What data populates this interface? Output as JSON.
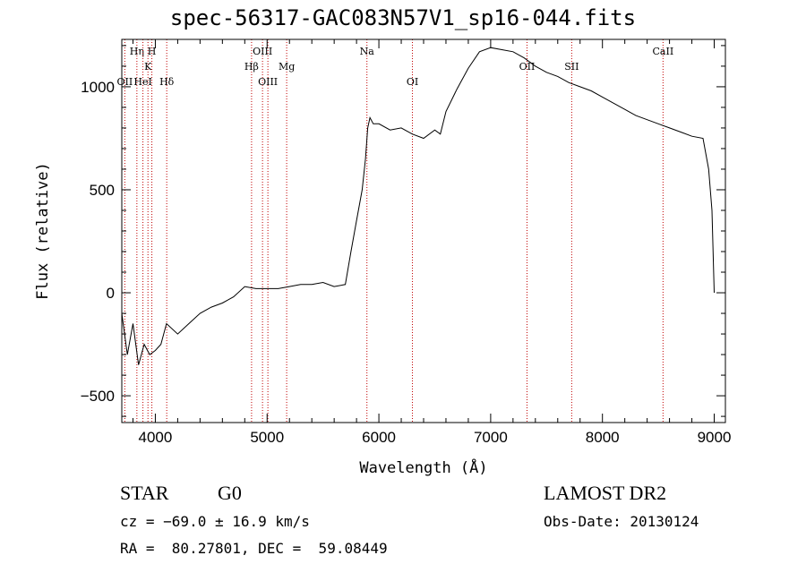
{
  "header": {
    "title": "spec-56317-GAC083N57V1_sp16-044.fits"
  },
  "info": {
    "object_class": "STAR",
    "subclass": "G0",
    "survey": "LAMOST DR2",
    "cz": "cz = −69.0 ± 16.9 km/s",
    "obs_date": "Obs-Date: 20130124",
    "ra_dec": "RA =  80.27801, DEC =  59.08449"
  },
  "chart_data": {
    "type": "line",
    "title": "spec-56317-GAC083N57V1_sp16-044.fits",
    "xlabel": "Wavelength (Å)",
    "ylabel": "Flux (relative)",
    "xlim": [
      3700,
      9100
    ],
    "ylim": [
      -630,
      1230
    ],
    "xticks": [
      4000,
      5000,
      6000,
      7000,
      8000,
      9000
    ],
    "yticks": [
      -500,
      0,
      500,
      1000
    ],
    "grid": false,
    "series": [
      {
        "x": [
          3700,
          3750,
          3800,
          3850,
          3900,
          3950,
          4000,
          4050,
          4100,
          4200,
          4300,
          4400,
          4500,
          4600,
          4700,
          4800,
          4900,
          5000,
          5100,
          5200,
          5300,
          5400,
          5500,
          5600,
          5700,
          5750,
          5800,
          5850,
          5880,
          5900,
          5920,
          5950,
          6000,
          6100,
          6200,
          6300,
          6400,
          6500,
          6550,
          6600,
          6700,
          6800,
          6900,
          7000,
          7100,
          7200,
          7300,
          7400,
          7500,
          7600,
          7700,
          7800,
          7900,
          8000,
          8100,
          8200,
          8300,
          8400,
          8500,
          8600,
          8700,
          8800,
          8900,
          8950,
          8980,
          9000
        ],
        "y": [
          -100,
          -300,
          -150,
          -350,
          -250,
          -300,
          -280,
          -250,
          -150,
          -200,
          -150,
          -100,
          -70,
          -50,
          -20,
          30,
          20,
          20,
          20,
          30,
          40,
          40,
          50,
          30,
          40,
          200,
          350,
          500,
          650,
          800,
          850,
          820,
          820,
          790,
          800,
          770,
          750,
          790,
          770,
          880,
          990,
          1090,
          1170,
          1190,
          1180,
          1170,
          1140,
          1100,
          1070,
          1050,
          1020,
          1000,
          980,
          950,
          920,
          890,
          860,
          840,
          820,
          800,
          780,
          760,
          750,
          600,
          400,
          0
        ]
      }
    ],
    "lines": [
      {
        "name": "OII",
        "x": 3727,
        "row": 3
      },
      {
        "name": "Hη",
        "x": 3835,
        "row": 1
      },
      {
        "name": "HeI",
        "x": 3889,
        "row": 3
      },
      {
        "name": "K",
        "x": 3934,
        "row": 2
      },
      {
        "name": "H",
        "x": 3969,
        "row": 1
      },
      {
        "name": "Hδ",
        "x": 4102,
        "row": 3
      },
      {
        "name": "Hβ",
        "x": 4861,
        "row": 2
      },
      {
        "name": "OIII",
        "x": 4959,
        "row": 1
      },
      {
        "name": "OIII",
        "x": 5007,
        "row": 3
      },
      {
        "name": "Mg",
        "x": 5175,
        "row": 2
      },
      {
        "name": "Na",
        "x": 5893,
        "row": 1
      },
      {
        "name": "OI",
        "x": 6300,
        "row": 3
      },
      {
        "name": "OII",
        "x": 7325,
        "row": 2
      },
      {
        "name": "SII",
        "x": 7725,
        "row": 2
      },
      {
        "name": "CaII",
        "x": 8542,
        "row": 1
      }
    ]
  }
}
